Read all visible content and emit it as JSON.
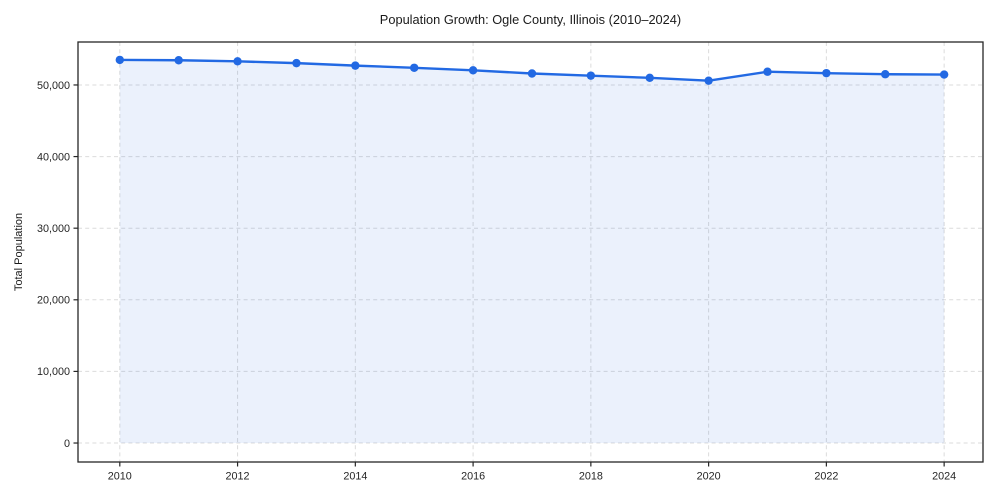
{
  "chart_data": {
    "type": "area",
    "title": "Population Growth: Ogle County, Illinois (2010–2024)",
    "xlabel": "",
    "ylabel": "Total Population",
    "x": [
      2010,
      2011,
      2012,
      2013,
      2014,
      2015,
      2016,
      2017,
      2018,
      2019,
      2020,
      2021,
      2022,
      2023,
      2024
    ],
    "series": [
      {
        "name": "Total Population",
        "values": [
          53500,
          53450,
          53300,
          53050,
          52700,
          52400,
          52050,
          51600,
          51300,
          51000,
          50600,
          51850,
          51650,
          51500,
          51450
        ]
      }
    ],
    "xticks": [
      2010,
      2012,
      2014,
      2016,
      2018,
      2020,
      2022,
      2024
    ],
    "xtick_labels": [
      "2010",
      "2012",
      "2014",
      "2016",
      "2018",
      "2020",
      "2022",
      "2024"
    ],
    "yticks": [
      0,
      10000,
      20000,
      30000,
      40000,
      50000
    ],
    "ytick_labels": [
      "0",
      "10,000",
      "20,000",
      "30,000",
      "40,000",
      "50,000"
    ],
    "xlim": [
      2009.29,
      2024.66
    ],
    "ylim": [
      -2650,
      56000
    ],
    "grid": true,
    "grid_style": "dashed",
    "legend": "none",
    "marker": "circle",
    "area_baseline": 0,
    "colors": {
      "line": "#2269e3",
      "marker": "#2269e3",
      "area_fill": "rgba(34,105,227,0.09)",
      "gridline": "#dbdbdb",
      "axis": "#262626",
      "background": "#ffffff",
      "text": "#1a1a1a"
    }
  }
}
